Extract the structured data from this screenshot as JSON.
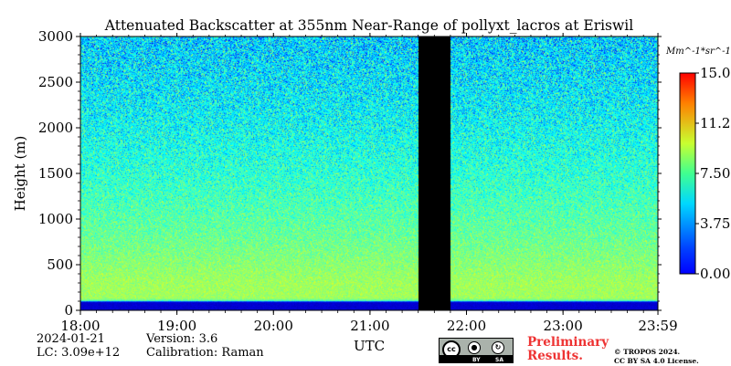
{
  "chart_data": {
    "type": "heatmap",
    "title": "Attenuated Backscatter at 355nm Near-Range of pollyxt_lacros at Eriswil",
    "xlabel": "UTC",
    "ylabel": "Height (m)",
    "x_tick_labels": [
      "18:00",
      "19:00",
      "20:00",
      "21:00",
      "22:00",
      "23:00",
      "23:59"
    ],
    "x_range_hours": [
      18.0,
      23.983
    ],
    "y_ticks": [
      0,
      500,
      1000,
      1500,
      2000,
      2500,
      3000
    ],
    "ylim": [
      0,
      3000
    ],
    "colorbar": {
      "label": "Mm^-1*sr^-1",
      "tick_labels": [
        "0.00",
        "3.75",
        "7.50",
        "11.25",
        "15.00"
      ],
      "range": [
        0,
        15
      ],
      "colormap": "jet"
    },
    "no_data_interval_hours": [
      21.5,
      21.83
    ],
    "features": {
      "blind_zone_top_m": 100,
      "bright_layer_top_m": 150
    },
    "profile_summary": [
      {
        "height_m": 0,
        "mean_value": 1.5
      },
      {
        "height_m": 130,
        "mean_value": 8.0
      },
      {
        "height_m": 300,
        "mean_value": 8.0
      },
      {
        "height_m": 800,
        "mean_value": 7.2
      },
      {
        "height_m": 1500,
        "mean_value": 6.3
      },
      {
        "height_m": 2200,
        "mean_value": 5.6
      },
      {
        "height_m": 3000,
        "mean_value": 5.0
      }
    ]
  },
  "info": {
    "date": "2024-01-21",
    "version": "Version: 3.6",
    "lc": "LC: 3.09e+12",
    "calibration": "Calibration: Raman",
    "preliminary": "Preliminary",
    "results": "Results.",
    "copyright": "© TROPOS 2024.",
    "license": "CC BY SA 4.0 License."
  },
  "cc_badge": {
    "icons": [
      "cc-icon",
      "by-icon",
      "sa-icon"
    ],
    "labels": [
      "BY",
      "SA"
    ]
  }
}
